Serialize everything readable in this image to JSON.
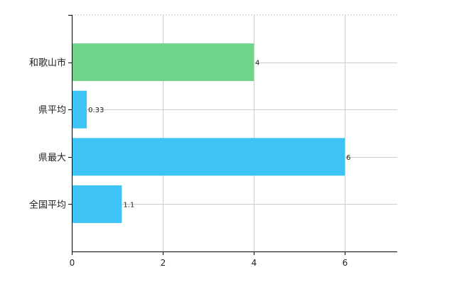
{
  "chart_data": {
    "type": "bar",
    "orientation": "horizontal",
    "title": "",
    "xlabel": "",
    "ylabel": "",
    "categories": [
      "和歌山市",
      "県平均",
      "県最大",
      "全国平均"
    ],
    "values": [
      4,
      0.33,
      6,
      1.1
    ],
    "value_labels": [
      "4",
      "0.33",
      "6",
      "1.1"
    ],
    "bar_colors": [
      "#6fd48a",
      "#3ec3f5",
      "#3ec3f5",
      "#3ec3f5"
    ],
    "xlim": [
      0,
      7.2
    ],
    "xticks": [
      0,
      2,
      4,
      6
    ],
    "xtick_labels": [
      "0",
      "2",
      "4",
      "6"
    ],
    "grid": true,
    "grid_color": "#cccccc",
    "axis_color": "#000000",
    "legend": "none"
  }
}
